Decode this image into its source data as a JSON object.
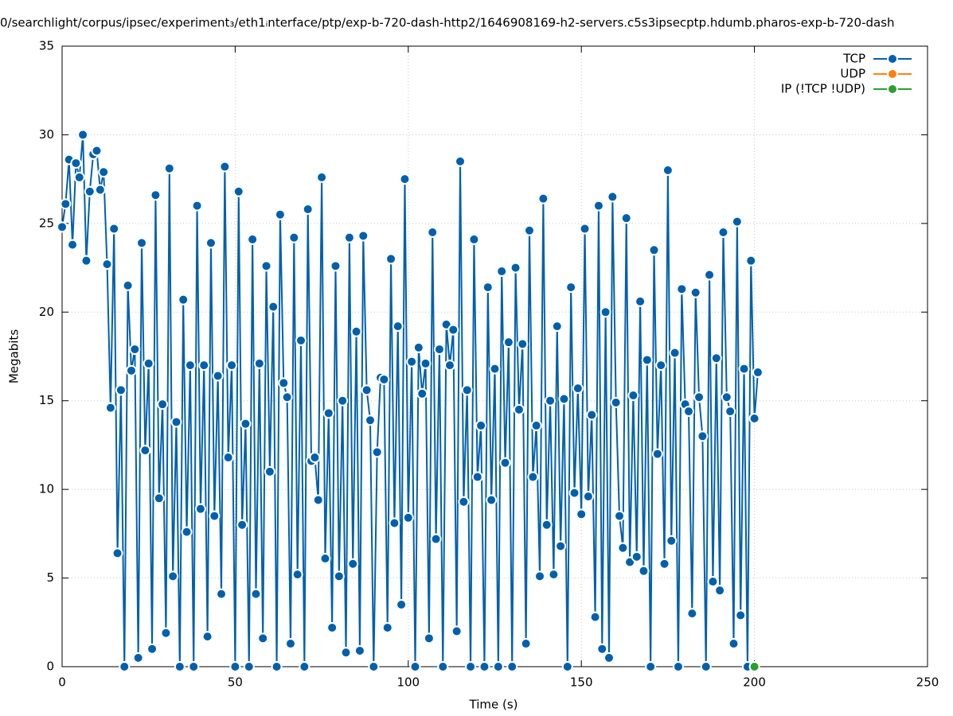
{
  "chart_data": {
    "type": "line",
    "title": "0/searchlight/corpus/ipsec/experiment₃/eth1ᵢnterface/ptp/exp-b-720-dash-http2/1646908169-h2-servers.c5s3ipsecptp.hdumb.pharos-exp-b-720-dash",
    "x_label": "Time (s)",
    "y_label": "Megabits",
    "xlim": [
      0,
      250
    ],
    "ylim": [
      0,
      35
    ],
    "xticks": [
      0,
      50,
      100,
      150,
      200,
      250
    ],
    "yticks": [
      0,
      5,
      10,
      15,
      20,
      25,
      30,
      35
    ],
    "grid": true,
    "legend": "top-right",
    "series": [
      {
        "name": "TCP",
        "color": "#0060ad",
        "x": [
          0,
          1,
          2,
          3,
          4,
          5,
          6,
          7,
          8,
          9,
          10,
          11,
          12,
          13,
          14,
          15,
          16,
          17,
          18,
          19,
          20,
          21,
          22,
          23,
          24,
          25,
          26,
          27,
          28,
          29,
          30,
          31,
          32,
          33,
          34,
          35,
          36,
          37,
          38,
          39,
          40,
          41,
          42,
          43,
          44,
          45,
          46,
          47,
          48,
          49,
          50,
          51,
          52,
          53,
          54,
          55,
          56,
          57,
          58,
          59,
          60,
          61,
          62,
          63,
          64,
          65,
          66,
          67,
          68,
          69,
          70,
          71,
          72,
          73,
          74,
          75,
          76,
          77,
          78,
          79,
          80,
          81,
          82,
          83,
          84,
          85,
          86,
          87,
          88,
          89,
          90,
          91,
          92,
          93,
          94,
          95,
          96,
          97,
          98,
          99,
          100,
          101,
          102,
          103,
          104,
          105,
          106,
          107,
          108,
          109,
          110,
          111,
          112,
          113,
          114,
          115,
          116,
          117,
          118,
          119,
          120,
          121,
          122,
          123,
          124,
          125,
          126,
          127,
          128,
          129,
          130,
          131,
          132,
          133,
          134,
          135,
          136,
          137,
          138,
          139,
          140,
          141,
          142,
          143,
          144,
          145,
          146,
          147,
          148,
          149,
          150,
          151,
          152,
          153,
          154,
          155,
          156,
          157,
          158,
          159,
          160,
          161,
          162,
          163,
          164,
          165,
          166,
          167,
          168,
          169,
          170,
          171,
          172,
          173,
          174,
          175,
          176,
          177,
          178,
          179,
          180,
          181,
          182,
          183,
          184,
          185,
          186,
          187,
          188,
          189,
          190,
          191,
          192,
          193,
          194,
          195,
          196,
          197,
          198,
          199,
          200,
          201
        ],
        "values": [
          24.8,
          26.1,
          28.6,
          23.8,
          28.4,
          27.6,
          30.0,
          22.9,
          26.8,
          28.9,
          29.1,
          26.9,
          27.9,
          22.7,
          14.6,
          24.7,
          6.4,
          15.6,
          0,
          21.5,
          16.7,
          17.9,
          0.5,
          23.9,
          12.2,
          17.1,
          1.0,
          26.6,
          9.5,
          14.8,
          1.9,
          28.1,
          5.1,
          13.8,
          0,
          20.7,
          7.6,
          17.0,
          0,
          26.0,
          8.9,
          17.0,
          1.7,
          23.9,
          8.5,
          16.4,
          4.1,
          28.2,
          11.8,
          17.0,
          0,
          26.8,
          8.0,
          13.7,
          0,
          24.1,
          4.1,
          17.1,
          1.6,
          22.6,
          11.0,
          20.3,
          0,
          25.5,
          16.0,
          15.2,
          1.3,
          24.2,
          5.2,
          18.4,
          0,
          25.8,
          11.6,
          11.8,
          9.4,
          27.6,
          6.1,
          14.3,
          2.2,
          22.6,
          5.1,
          15.0,
          0.8,
          24.2,
          5.8,
          18.9,
          0.9,
          24.3,
          15.6,
          13.9,
          0,
          12.1,
          16.3,
          16.2,
          2.2,
          23.0,
          8.1,
          19.2,
          3.5,
          27.5,
          8.4,
          17.2,
          0,
          18.0,
          15.4,
          17.1,
          1.6,
          24.5,
          7.2,
          17.9,
          0,
          19.3,
          17.0,
          19.0,
          2.0,
          28.5,
          9.3,
          15.6,
          0,
          24.1,
          10.7,
          13.6,
          0,
          21.4,
          9.4,
          16.8,
          0,
          22.3,
          11.5,
          18.3,
          0,
          22.5,
          14.5,
          18.2,
          1.3,
          24.6,
          10.7,
          13.6,
          5.1,
          26.4,
          8.0,
          15.0,
          5.2,
          19.2,
          6.8,
          15.1,
          0,
          21.4,
          9.8,
          15.7,
          8.6,
          24.7,
          9.6,
          14.2,
          2.8,
          26.0,
          1.0,
          20.0,
          0.5,
          26.5,
          14.9,
          8.5,
          6.7,
          25.3,
          5.9,
          15.3,
          6.2,
          20.6,
          5.4,
          17.3,
          0,
          23.5,
          12.0,
          17.0,
          5.8,
          28.0,
          7.1,
          17.7,
          0,
          21.3,
          14.8,
          14.4,
          3.0,
          21.1,
          15.2,
          13.0,
          0,
          22.1,
          4.8,
          17.4,
          4.3,
          24.5,
          15.2,
          14.4,
          1.3,
          25.1,
          2.9,
          16.8,
          0,
          22.9,
          14.0,
          16.6
        ]
      },
      {
        "name": "UDP",
        "color": "#ff7f0e",
        "x": [],
        "values": []
      },
      {
        "name": "IP (!TCP  !UDP)",
        "color": "#2ca02c",
        "x": [
          200
        ],
        "values": [
          0
        ]
      }
    ]
  }
}
